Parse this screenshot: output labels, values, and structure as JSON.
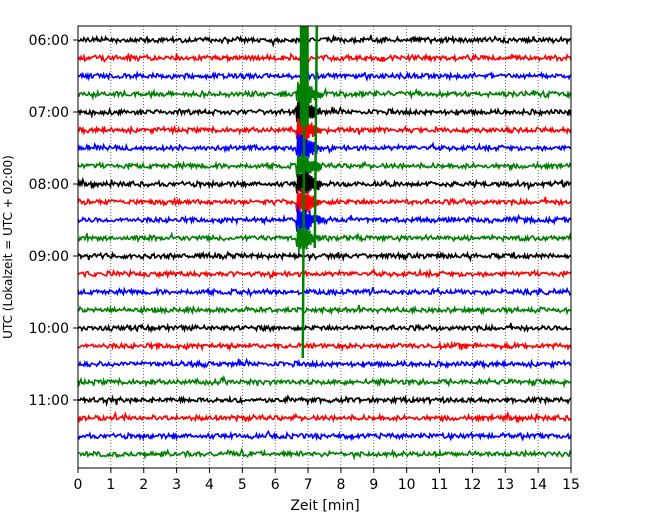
{
  "chart_data": {
    "type": "line",
    "title": "",
    "xlabel": "Zeit  [min]",
    "ylabel": "UTC (Lokalzeit = UTC + 02:00)",
    "xlim": [
      0,
      15
    ],
    "x_ticks": [
      0,
      1,
      2,
      3,
      4,
      5,
      6,
      7,
      8,
      9,
      10,
      11,
      12,
      13,
      14,
      15
    ],
    "x_tick_labels": [
      "0",
      "1",
      "2",
      "3",
      "4",
      "5",
      "6",
      "7",
      "8",
      "9",
      "10",
      "11",
      "12",
      "13",
      "14",
      "15"
    ],
    "y_tick_labels": [
      "06:00",
      "07:00",
      "08:00",
      "09:00",
      "10:00",
      "11:00"
    ],
    "row_interval_minutes": 15,
    "grid": "vertical dotted",
    "colors": [
      "#000000",
      "#ff0000",
      "#0000ff",
      "#008000"
    ],
    "series": [
      {
        "start": "06:00",
        "color": "#000000"
      },
      {
        "start": "06:15",
        "color": "#ff0000"
      },
      {
        "start": "06:30",
        "color": "#0000ff"
      },
      {
        "start": "06:45",
        "color": "#008000",
        "event_min": 6.9,
        "amplitude": "large"
      },
      {
        "start": "07:00",
        "color": "#000000",
        "event_min": 6.9,
        "amplitude": "large"
      },
      {
        "start": "07:15",
        "color": "#ff0000",
        "event_min": 6.9,
        "amplitude": "large"
      },
      {
        "start": "07:30",
        "color": "#0000ff",
        "event_min": 6.9,
        "amplitude": "large"
      },
      {
        "start": "07:45",
        "color": "#008000",
        "event_min": 6.9,
        "amplitude": "large"
      },
      {
        "start": "08:00",
        "color": "#000000",
        "event_min": 6.9,
        "amplitude": "large"
      },
      {
        "start": "08:15",
        "color": "#ff0000",
        "event_min": 6.9,
        "amplitude": "large"
      },
      {
        "start": "08:30",
        "color": "#0000ff",
        "event_min": 6.9,
        "amplitude": "large"
      },
      {
        "start": "08:45",
        "color": "#008000",
        "event_min": 6.9,
        "amplitude": "large"
      },
      {
        "start": "09:00",
        "color": "#000000"
      },
      {
        "start": "09:15",
        "color": "#ff0000"
      },
      {
        "start": "09:30",
        "color": "#0000ff"
      },
      {
        "start": "09:45",
        "color": "#008000"
      },
      {
        "start": "10:00",
        "color": "#000000"
      },
      {
        "start": "10:15",
        "color": "#ff0000"
      },
      {
        "start": "10:30",
        "color": "#0000ff"
      },
      {
        "start": "10:45",
        "color": "#008000"
      },
      {
        "start": "11:00",
        "color": "#000000"
      },
      {
        "start": "11:15",
        "color": "#ff0000"
      },
      {
        "start": "11:30",
        "color": "#0000ff"
      },
      {
        "start": "11:45",
        "color": "#008000"
      }
    ]
  }
}
